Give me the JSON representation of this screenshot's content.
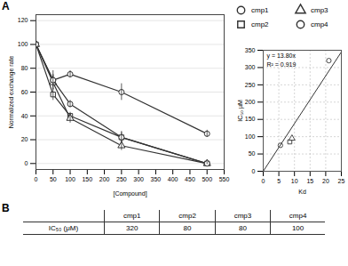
{
  "chart_data": [
    {
      "type": "line",
      "xlabel": "[Compound]",
      "ylabel": "Normalized exchange rate",
      "annotations": [
        "A"
      ],
      "xlim": [
        0,
        550
      ],
      "ylim": [
        -5,
        125
      ],
      "xticks": [
        0,
        50,
        100,
        150,
        200,
        250,
        300,
        350,
        400,
        450,
        500,
        550
      ],
      "yticks": [
        0,
        20,
        40,
        60,
        80,
        100,
        120
      ],
      "grid": "y",
      "legend": "right",
      "x": [
        0,
        50,
        100,
        250,
        500
      ],
      "series": [
        {
          "name": "cmp1",
          "color": "#333333",
          "marker": "circle",
          "values": [
            100,
            70,
            75,
            60,
            25
          ],
          "yerr": [
            2,
            8,
            3,
            7,
            3
          ]
        },
        {
          "name": "cmp2",
          "color": "#333333",
          "marker": "square",
          "values": [
            100,
            58,
            40,
            22,
            0
          ],
          "yerr": [
            2,
            5,
            3,
            4,
            1
          ]
        },
        {
          "name": "cmp3",
          "color": "#333333",
          "marker": "triangle",
          "values": [
            100,
            68,
            38,
            15,
            0
          ],
          "yerr": [
            2,
            6,
            4,
            4,
            1
          ]
        },
        {
          "name": "cmp4",
          "color": "#333333",
          "marker": "circle",
          "values": [
            100,
            70,
            50,
            22,
            0
          ],
          "yerr": [
            2,
            5,
            3,
            5,
            1
          ]
        }
      ]
    },
    {
      "type": "scatter",
      "xlabel": "Kd",
      "ylabel": "IC₅₀ µM",
      "annotations": [
        "y = 13.80x",
        "R² = 0.919"
      ],
      "xlim": [
        0,
        25
      ],
      "ylim": [
        0,
        350
      ],
      "xticks": [
        0,
        5,
        10,
        15,
        20,
        25
      ],
      "yticks": [
        0,
        50,
        100,
        150,
        200,
        250,
        300,
        350
      ],
      "grid": true,
      "series": [
        {
          "type": "scatter",
          "color": "#333333",
          "x": [
            5.5,
            8.5,
            9.2,
            21.0
          ],
          "values": [
            75,
            85,
            95,
            320
          ],
          "markers": [
            "circle",
            "square",
            "triangle",
            "circle"
          ]
        },
        {
          "type": "line",
          "color": "#333333",
          "x": [
            0,
            25
          ],
          "values": [
            0,
            345
          ]
        }
      ]
    },
    {
      "type": "table",
      "annotations": [
        "B"
      ],
      "categories": [
        "cmp1",
        "cmp2",
        "cmp3",
        "cmp4"
      ],
      "series": [
        {
          "name": "IC₅₀ (μM)",
          "values": [
            320,
            80,
            80,
            100
          ]
        }
      ]
    }
  ]
}
